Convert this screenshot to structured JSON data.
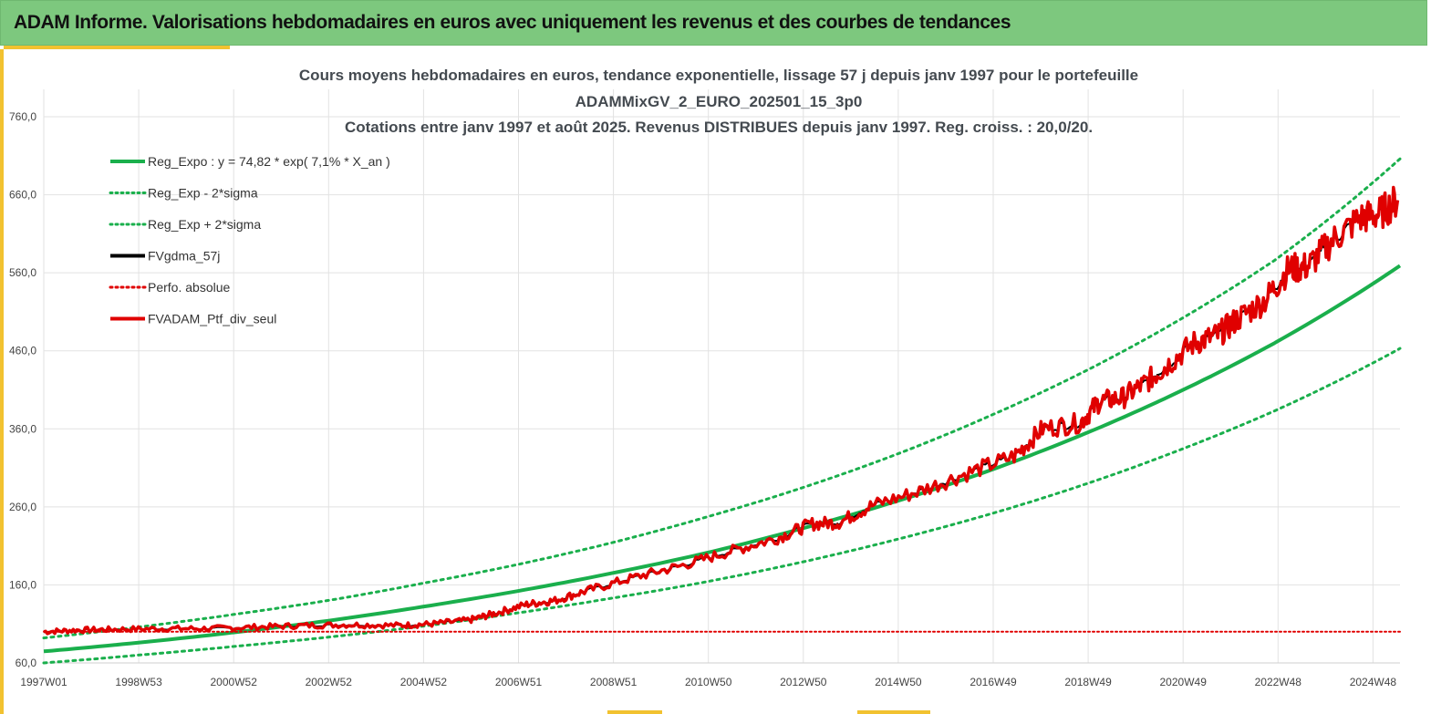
{
  "header": {
    "title": "ADAM Informe. Valorisations hebdomadaires en euros avec uniquement les revenus et des courbes de tendances"
  },
  "chart_data": {
    "type": "line",
    "title": [
      "Cours moyens hebdomadaires  en euros, tendance exponentielle, lissage 57 j depuis janv 1997 pour le portefeuille",
      "ADAMMixGV_2_EURO_202501_15_3p0",
      "Cotations  entre janv 1997 et août 2025. Revenus DISTRIBUES depuis janv 1997. Reg. croiss. : 20,0/20."
    ],
    "xlabel": "",
    "ylabel": "",
    "ylim": [
      60,
      760
    ],
    "xlim": [
      1997.0,
      2025.65
    ],
    "yticks": [
      "760,0",
      "660,0",
      "560,0",
      "460,0",
      "360,0",
      "260,0",
      "160,0",
      "60,0"
    ],
    "xticks": [
      "1997W01",
      "1998W53",
      "2000W52",
      "2002W52",
      "2004W52",
      "2006W51",
      "2008W51",
      "2010W50",
      "2012W50",
      "2014W50",
      "2016W49",
      "2018W49",
      "2020W49",
      "2022W48",
      "2024W48"
    ],
    "legend_position": "top-left",
    "grid": true,
    "series": [
      {
        "name": "Reg_Expo : y = 74,82 * exp( 7,1% *  X_an )",
        "color": "#1aaf4c",
        "style": "solid",
        "x": [
          1997,
          1999,
          2001,
          2003,
          2005,
          2007,
          2009,
          2011,
          2013,
          2015,
          2017,
          2019,
          2021,
          2023,
          2025.65
        ],
        "values": [
          74.8,
          86,
          99,
          114,
          132,
          152,
          175,
          201,
          232,
          267,
          307,
          354,
          408,
          470,
          569
        ]
      },
      {
        "name": "Reg_Exp - 2*sigma",
        "color": "#1aaf4c",
        "style": "dotted",
        "x": [
          1997,
          1999,
          2001,
          2003,
          2005,
          2007,
          2009,
          2011,
          2013,
          2015,
          2017,
          2019,
          2021,
          2023,
          2025.65
        ],
        "values": [
          60,
          70,
          81,
          93,
          107,
          124,
          143,
          164,
          189,
          218,
          251,
          289,
          333,
          383,
          463
        ]
      },
      {
        "name": "Reg_Exp + 2*sigma",
        "color": "#1aaf4c",
        "style": "dotted",
        "x": [
          1997,
          1999,
          2001,
          2003,
          2005,
          2007,
          2009,
          2011,
          2013,
          2015,
          2017,
          2019,
          2021,
          2023,
          2025.65
        ],
        "values": [
          92,
          106,
          122,
          140,
          162,
          186,
          214,
          247,
          284,
          327,
          377,
          434,
          500,
          576,
          706
        ]
      },
      {
        "name": "FVgdma_57j",
        "color": "#000000",
        "style": "solid",
        "x": [
          1997,
          1997.7,
          1998.5,
          1999.5,
          2000.5,
          2001.5,
          2002.5,
          2003.5,
          2004.5,
          2005.2,
          2006.0,
          2006.5,
          2007.2,
          2007.8,
          2008.5,
          2009.5,
          2010.5,
          2011.5,
          2012.5,
          2013.2,
          2013.8,
          2014.5,
          2015.5,
          2016.5,
          2017.5,
          2018.1,
          2018.9,
          2019.3,
          2019.8,
          2020.3,
          2020.7,
          2021.3,
          2021.8,
          2022.2,
          2022.8,
          2023.3,
          2023.7,
          2024.2,
          2024.8,
          2025.2,
          2025.6
        ],
        "values": [
          100,
          102,
          103,
          104,
          104,
          106,
          108,
          109,
          108,
          110,
          115,
          123,
          135,
          140,
          153,
          170,
          185,
          203,
          220,
          238,
          240,
          262,
          280,
          303,
          325,
          360,
          368,
          395,
          400,
          420,
          440,
          470,
          480,
          500,
          525,
          565,
          568,
          600,
          630,
          635,
          653
        ]
      },
      {
        "name": "Perfo. absolue",
        "color": "#e00000",
        "style": "dotted",
        "x": [
          1997,
          2025.65
        ],
        "values": [
          100,
          100
        ]
      },
      {
        "name": "FVADAM_Ptf_div_seul",
        "color": "#e00000",
        "style": "solid",
        "x": [
          1997,
          1997.7,
          1998.5,
          1999.5,
          2000.5,
          2001.5,
          2002.5,
          2003.5,
          2004.5,
          2005.2,
          2006.0,
          2006.5,
          2007.2,
          2007.8,
          2008.5,
          2009.5,
          2010.5,
          2011.5,
          2012.5,
          2013.2,
          2013.8,
          2014.5,
          2015.5,
          2016.5,
          2017.5,
          2018.1,
          2018.9,
          2019.3,
          2019.8,
          2020.3,
          2020.7,
          2021.3,
          2021.8,
          2022.2,
          2022.8,
          2023.3,
          2023.7,
          2024.2,
          2024.8,
          2025.2,
          2025.6
        ],
        "values": [
          100,
          102,
          103,
          104,
          104,
          106,
          108,
          109,
          108,
          110,
          115,
          123,
          135,
          140,
          153,
          170,
          185,
          203,
          220,
          238,
          240,
          262,
          280,
          303,
          325,
          360,
          368,
          395,
          400,
          420,
          440,
          470,
          480,
          500,
          525,
          565,
          568,
          600,
          630,
          635,
          653
        ]
      }
    ]
  }
}
